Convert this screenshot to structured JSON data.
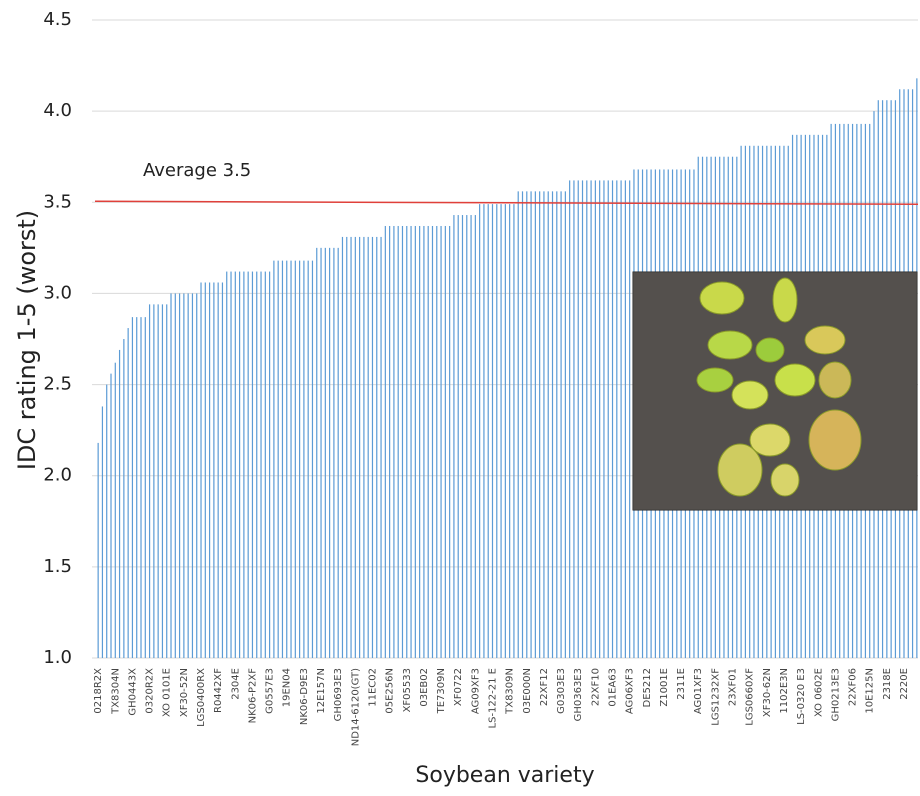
{
  "chart_data": {
    "type": "bar",
    "y_label": "IDC rating 1-5 (worst)",
    "x_label": "Soybean variety",
    "color": "#5b9bd5",
    "grid": true,
    "ylim": [
      1,
      4.5
    ],
    "yticks": [
      {
        "value": 1,
        "label": "1.0"
      },
      1.5,
      {
        "value": 2,
        "label": "2.0"
      },
      2.5,
      {
        "value": 3,
        "label": "3.0"
      },
      3.5,
      {
        "value": 4,
        "label": "4.0"
      },
      4.5
    ],
    "reference_line": {
      "value": 3.5,
      "label": "Average 3.5",
      "color": "#e0403a"
    },
    "categories": [
      "0218R2X",
      null,
      null,
      null,
      "TX8304N",
      null,
      null,
      null,
      "GH0443X",
      null,
      null,
      null,
      "0320R2X",
      null,
      null,
      null,
      "XO 0101E",
      null,
      null,
      null,
      "XF30-52N",
      null,
      null,
      null,
      "LGS0400RX",
      null,
      null,
      null,
      "R0442XF",
      null,
      null,
      null,
      "2304E",
      null,
      null,
      null,
      "NK06-P2XF",
      null,
      null,
      null,
      "G0557E3",
      null,
      null,
      null,
      "19EN04",
      null,
      null,
      null,
      "NK06-D9E3",
      null,
      null,
      null,
      "12E157N",
      null,
      null,
      null,
      "GH0693E3",
      null,
      null,
      null,
      "ND14-6120(GT)",
      null,
      null,
      null,
      "11EC02",
      null,
      null,
      null,
      "05E256N",
      null,
      null,
      null,
      "XF05533",
      null,
      null,
      null,
      "03EB02",
      null,
      null,
      null,
      "TE7309N",
      null,
      null,
      null,
      "XF0722",
      null,
      null,
      null,
      "AG09XF3",
      null,
      null,
      null,
      "LS-122-21 E",
      null,
      null,
      null,
      "TX8309N",
      null,
      null,
      null,
      "03E000N",
      null,
      null,
      null,
      "22XF12",
      null,
      null,
      null,
      "G0303E3",
      null,
      null,
      null,
      "GH0363E3",
      null,
      null,
      null,
      "22XF10",
      null,
      null,
      null,
      "01EA63",
      null,
      null,
      null,
      "AG06XF3",
      null,
      null,
      null,
      "DE5212",
      null,
      null,
      null,
      "Z1001E",
      null,
      null,
      null,
      "2311E",
      null,
      null,
      null,
      "AG01XF3",
      null,
      null,
      null,
      "LGS1232XF",
      null,
      null,
      null,
      "23XF01",
      null,
      null,
      null,
      "LGS0660XF",
      null,
      null,
      null,
      "XF30-62N",
      null,
      null,
      null,
      "1102E3N",
      null,
      null,
      null,
      "LS-0320 E3",
      null,
      null,
      null,
      "XO 0602E",
      null,
      null,
      null,
      "GH0213E3",
      null,
      null,
      null,
      "22XF06",
      null,
      null,
      null,
      "10E125N",
      null,
      null,
      null,
      "2318E",
      null,
      null,
      null,
      "2220E",
      null,
      null,
      null
    ],
    "values": [
      2.18,
      2.38,
      2.5,
      2.56,
      2.62,
      2.69,
      2.75,
      2.81,
      2.87,
      2.87,
      2.87,
      2.87,
      2.94,
      2.94,
      2.94,
      2.94,
      2.94,
      3.0,
      3.0,
      3.0,
      3.0,
      3.0,
      3.0,
      3.0,
      3.06,
      3.06,
      3.06,
      3.06,
      3.06,
      3.06,
      3.12,
      3.12,
      3.12,
      3.12,
      3.12,
      3.12,
      3.12,
      3.12,
      3.12,
      3.12,
      3.12,
      3.18,
      3.18,
      3.18,
      3.18,
      3.18,
      3.18,
      3.18,
      3.18,
      3.18,
      3.18,
      3.25,
      3.25,
      3.25,
      3.25,
      3.25,
      3.25,
      3.31,
      3.31,
      3.31,
      3.31,
      3.31,
      3.31,
      3.31,
      3.31,
      3.31,
      3.31,
      3.37,
      3.37,
      3.37,
      3.37,
      3.37,
      3.37,
      3.37,
      3.37,
      3.37,
      3.37,
      3.37,
      3.37,
      3.37,
      3.37,
      3.37,
      3.37,
      3.43,
      3.43,
      3.43,
      3.43,
      3.43,
      3.43,
      3.49,
      3.49,
      3.49,
      3.49,
      3.49,
      3.49,
      3.49,
      3.49,
      3.49,
      3.56,
      3.56,
      3.56,
      3.56,
      3.56,
      3.56,
      3.56,
      3.56,
      3.56,
      3.56,
      3.56,
      3.56,
      3.62,
      3.62,
      3.62,
      3.62,
      3.62,
      3.62,
      3.62,
      3.62,
      3.62,
      3.62,
      3.62,
      3.62,
      3.62,
      3.62,
      3.62,
      3.68,
      3.68,
      3.68,
      3.68,
      3.68,
      3.68,
      3.68,
      3.68,
      3.68,
      3.68,
      3.68,
      3.68,
      3.68,
      3.68,
      3.68,
      3.75,
      3.75,
      3.75,
      3.75,
      3.75,
      3.75,
      3.75,
      3.75,
      3.75,
      3.75,
      3.81,
      3.81,
      3.81,
      3.81,
      3.81,
      3.81,
      3.81,
      3.81,
      3.81,
      3.81,
      3.81,
      3.81,
      3.87,
      3.87,
      3.87,
      3.87,
      3.87,
      3.87,
      3.87,
      3.87,
      3.87,
      3.93,
      3.93,
      3.93,
      3.93,
      3.93,
      3.93,
      3.93,
      3.93,
      3.93,
      3.93,
      4.0,
      4.06,
      4.06,
      4.06,
      4.06,
      4.06,
      4.12,
      4.12,
      4.12,
      4.12,
      4.18
    ]
  }
}
